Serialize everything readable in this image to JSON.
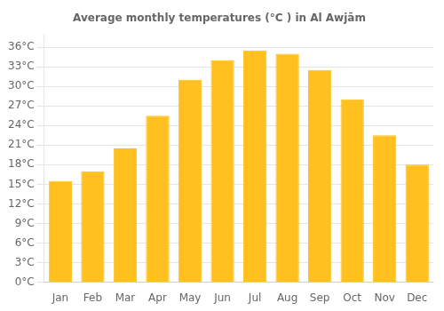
{
  "chart_data": {
    "type": "bar",
    "title": "Average monthly temperatures (°C ) in Al Awjām",
    "categories": [
      "Jan",
      "Feb",
      "Mar",
      "Apr",
      "May",
      "Jun",
      "Jul",
      "Aug",
      "Sep",
      "Oct",
      "Nov",
      "Dec"
    ],
    "values": [
      15.5,
      17.0,
      20.5,
      25.5,
      31.0,
      34.0,
      35.5,
      35.0,
      32.5,
      28.0,
      22.5,
      18.0
    ],
    "color": "#FFC020",
    "ylim": [
      0,
      38
    ],
    "yticks": [
      {
        "value": 0,
        "label": "0°C"
      },
      {
        "value": 3,
        "label": "3°C"
      },
      {
        "value": 6,
        "label": "6°C"
      },
      {
        "value": 9,
        "label": "9°C"
      },
      {
        "value": 12,
        "label": "12°C"
      },
      {
        "value": 15,
        "label": "15°C"
      },
      {
        "value": 18,
        "label": "18°C"
      },
      {
        "value": 21,
        "label": "21°C"
      },
      {
        "value": 24,
        "label": "24°C"
      },
      {
        "value": 27,
        "label": "27°C"
      },
      {
        "value": 30,
        "label": "30°C"
      },
      {
        "value": 33,
        "label": "33°C"
      },
      {
        "value": 36,
        "label": "36°C"
      }
    ],
    "grid": true
  }
}
